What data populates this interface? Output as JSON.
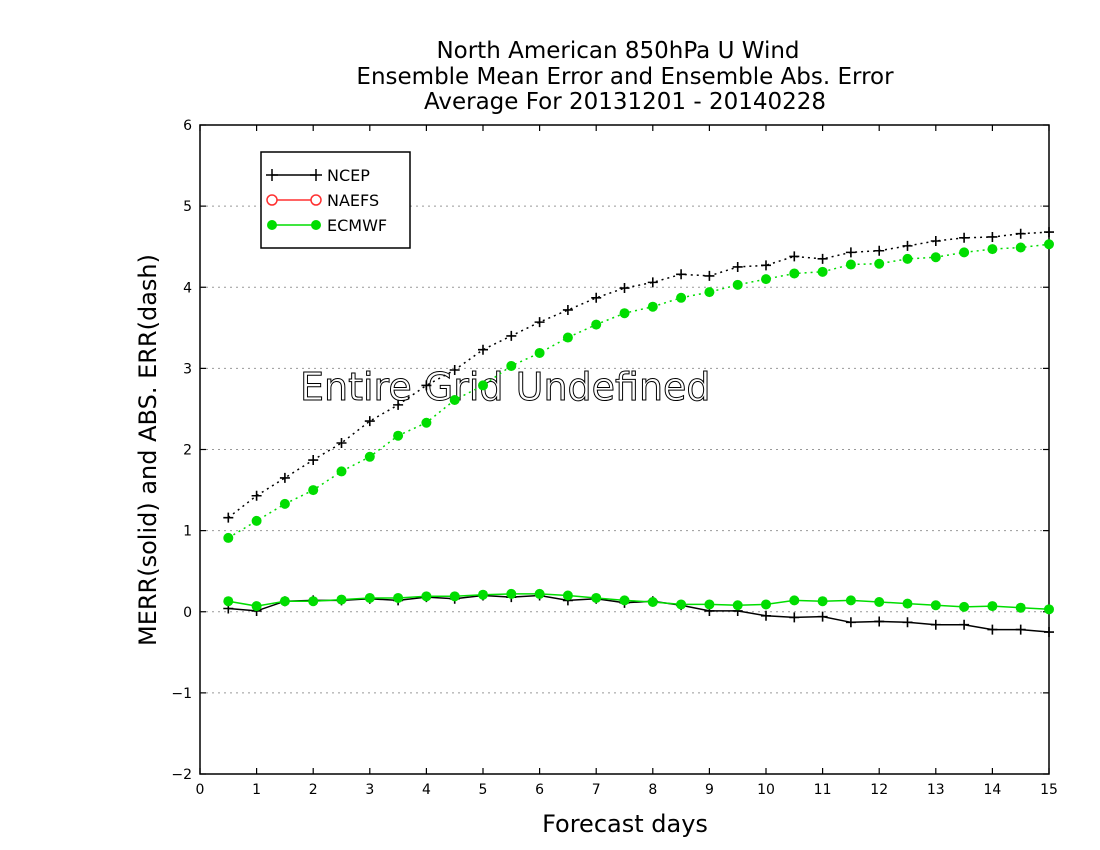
{
  "chart_data": {
    "type": "line",
    "title_lines": [
      "North American 850hPa U Wind",
      "Ensemble Mean Error and Ensemble Abs. Error",
      "Average For 20131201 - 20140228"
    ],
    "xlabel": "Forecast days",
    "ylabel": "MERR(solid) and ABS. ERR(dash)",
    "xlim": [
      0,
      15
    ],
    "ylim": [
      -2,
      6
    ],
    "x_ticks": [
      "0",
      "1",
      "2",
      "3",
      "4",
      "5",
      "6",
      "7",
      "8",
      "9",
      "10",
      "11",
      "12",
      "13",
      "14",
      "15"
    ],
    "y_ticks": [
      "−2",
      "−1",
      "0",
      "1",
      "2",
      "3",
      "4",
      "5",
      "6"
    ],
    "grid": "horizontal dotted",
    "legend_position": "top-left",
    "annotation": "Entire Grid Undefined",
    "x": [
      0.5,
      1,
      1.5,
      2,
      2.5,
      3,
      3.5,
      4,
      4.5,
      5,
      5.5,
      6,
      6.5,
      7,
      7.5,
      8,
      8.5,
      9,
      9.5,
      10,
      10.5,
      11,
      11.5,
      12,
      12.5,
      13,
      13.5,
      14,
      14.5,
      15
    ],
    "series": [
      {
        "name": "NCEP",
        "color": "#000000",
        "marker": "plus",
        "merr": [
          0.04,
          0.01,
          0.13,
          0.14,
          0.14,
          0.16,
          0.14,
          0.18,
          0.16,
          0.2,
          0.18,
          0.2,
          0.14,
          0.16,
          0.11,
          0.13,
          0.08,
          0.01,
          0.01,
          -0.05,
          -0.07,
          -0.06,
          -0.13,
          -0.12,
          -0.13,
          -0.16,
          -0.16,
          -0.22,
          -0.22,
          -0.25
        ],
        "abs_err": [
          1.16,
          1.43,
          1.65,
          1.87,
          2.08,
          2.35,
          2.55,
          2.79,
          2.98,
          3.23,
          3.4,
          3.57,
          3.72,
          3.87,
          3.99,
          4.06,
          4.16,
          4.14,
          4.25,
          4.27,
          4.38,
          4.35,
          4.43,
          4.45,
          4.51,
          4.57,
          4.61,
          4.62,
          4.66,
          4.68
        ]
      },
      {
        "name": "NAEFS",
        "color": "#ff3030",
        "marker": "open-circle",
        "merr": [],
        "abs_err": []
      },
      {
        "name": "ECMWF",
        "color": "#00dd00",
        "marker": "filled-circle",
        "merr": [
          0.13,
          0.07,
          0.13,
          0.13,
          0.15,
          0.17,
          0.17,
          0.19,
          0.19,
          0.21,
          0.22,
          0.22,
          0.2,
          0.17,
          0.14,
          0.12,
          0.09,
          0.09,
          0.08,
          0.09,
          0.14,
          0.13,
          0.14,
          0.12,
          0.1,
          0.08,
          0.06,
          0.07,
          0.05,
          0.03
        ],
        "abs_err": [
          0.91,
          1.12,
          1.33,
          1.5,
          1.73,
          1.91,
          2.17,
          2.33,
          2.61,
          2.79,
          3.03,
          3.19,
          3.38,
          3.54,
          3.68,
          3.76,
          3.87,
          3.94,
          4.03,
          4.1,
          4.17,
          4.19,
          4.28,
          4.29,
          4.35,
          4.37,
          4.43,
          4.47,
          4.49,
          4.53
        ]
      }
    ]
  }
}
